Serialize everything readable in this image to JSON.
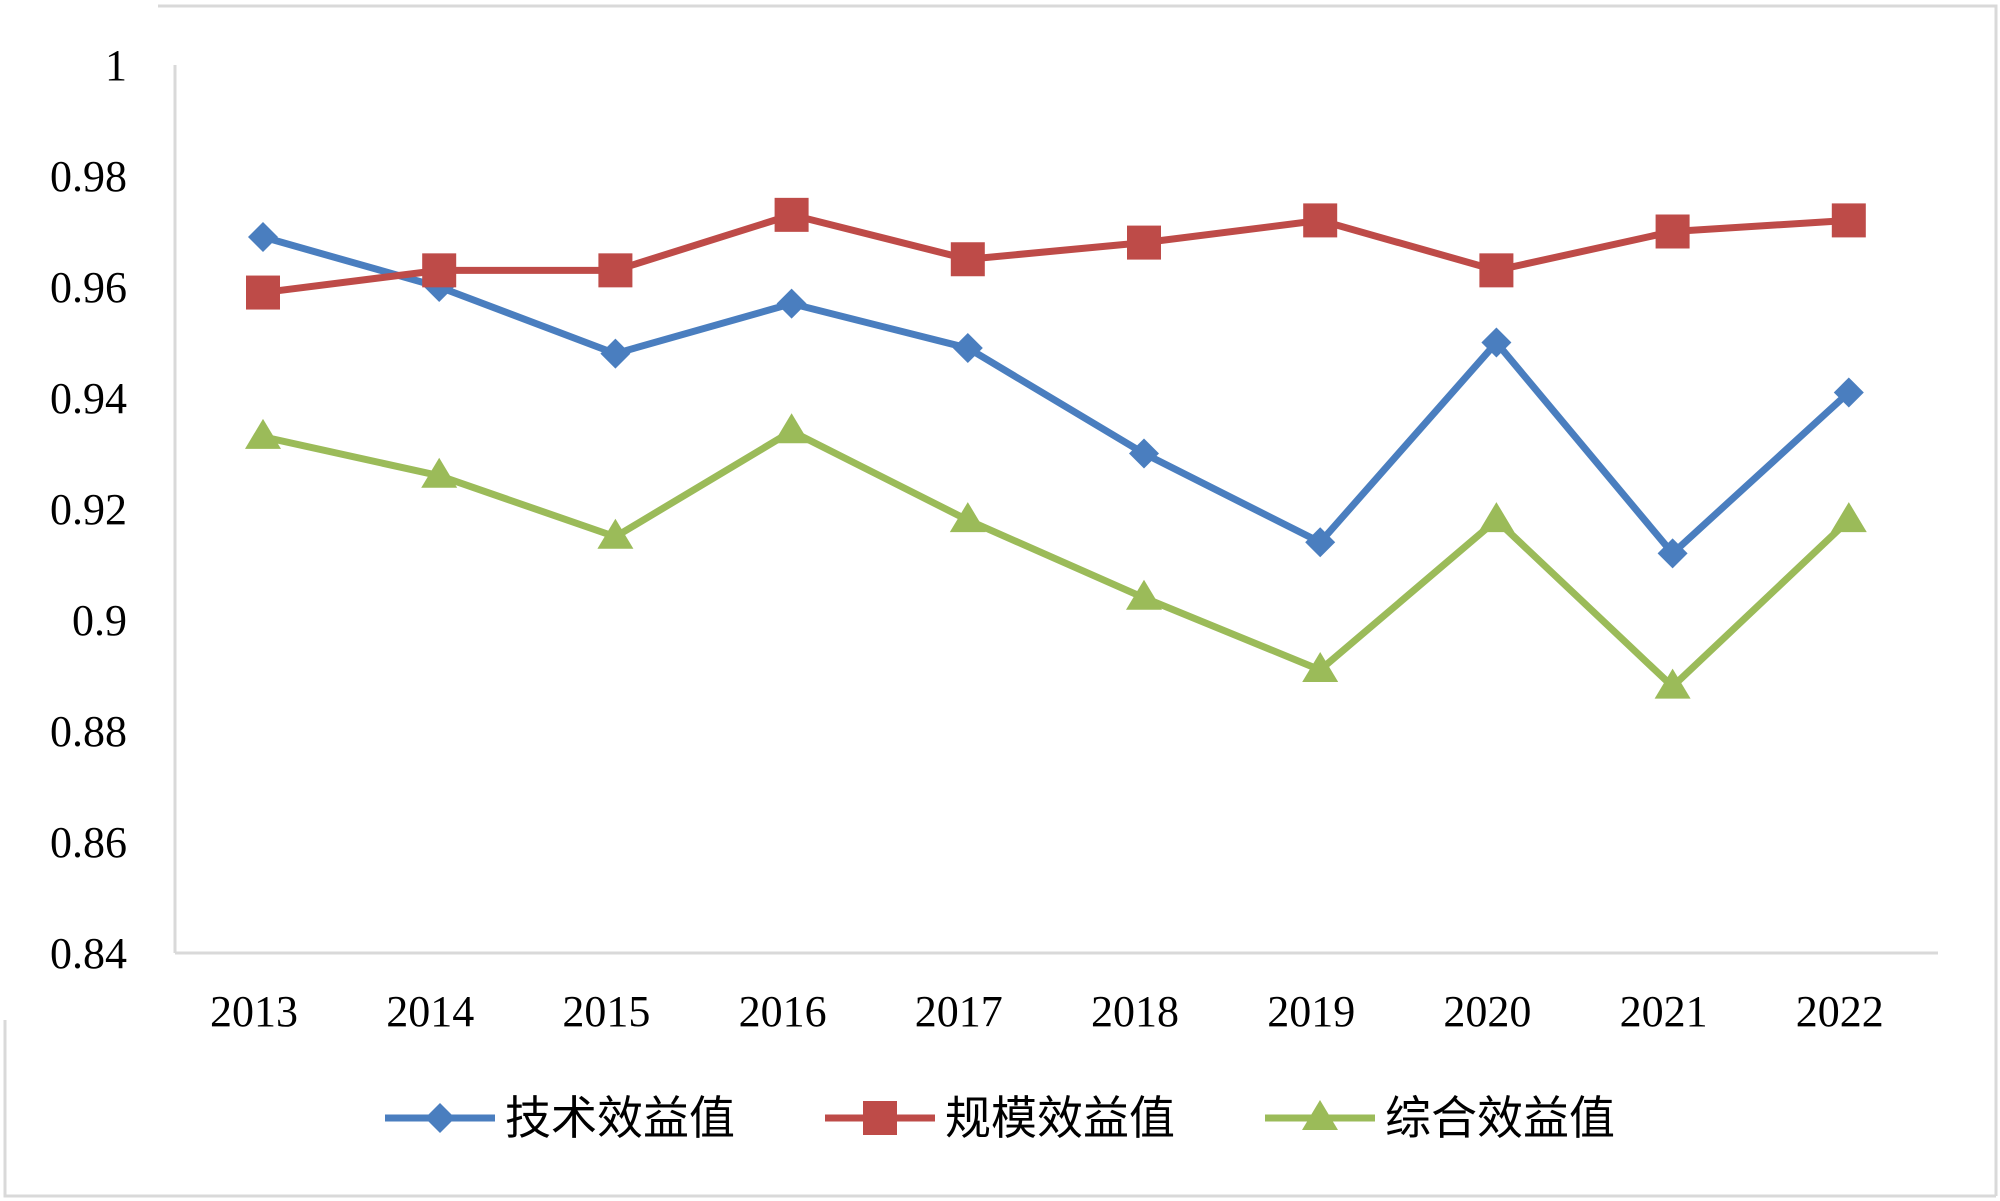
{
  "chart_data": {
    "type": "line",
    "title": "",
    "xlabel": "",
    "ylabel": "",
    "categories": [
      "2013",
      "2014",
      "2015",
      "2016",
      "2017",
      "2018",
      "2019",
      "2020",
      "2021",
      "2022"
    ],
    "ylim": [
      0.84,
      1
    ],
    "yticks": [
      "0.84",
      "0.86",
      "0.88",
      "0.9",
      "0.92",
      "0.94",
      "0.96",
      "0.98",
      "1"
    ],
    "grid": false,
    "legend_position": "bottom",
    "series": [
      {
        "name": "技术效益值",
        "color": "#4a7ebf",
        "marker": "diamond",
        "values": [
          0.969,
          0.96,
          0.948,
          0.957,
          0.949,
          0.93,
          0.914,
          0.95,
          0.912,
          0.941
        ]
      },
      {
        "name": "规模效益值",
        "color": "#be4b48",
        "marker": "square",
        "values": [
          0.959,
          0.963,
          0.963,
          0.973,
          0.965,
          0.968,
          0.972,
          0.963,
          0.97,
          0.972
        ]
      },
      {
        "name": "综合效益值",
        "color": "#9bbb59",
        "marker": "triangle",
        "values": [
          0.933,
          0.926,
          0.915,
          0.934,
          0.918,
          0.904,
          0.891,
          0.918,
          0.888,
          0.918
        ]
      }
    ]
  }
}
